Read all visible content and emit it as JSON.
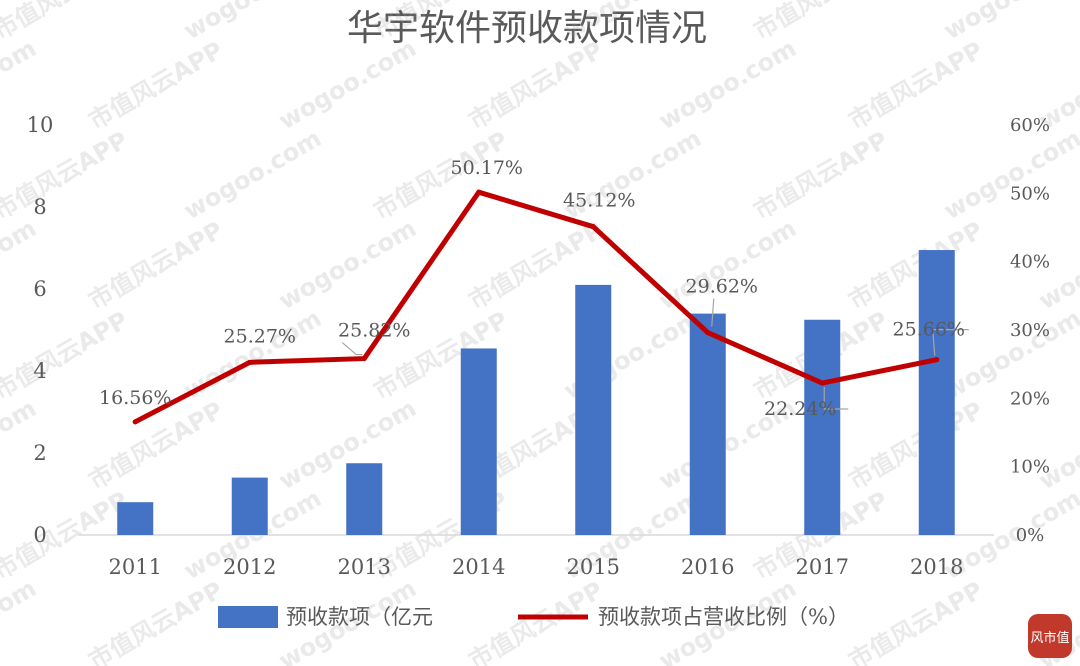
{
  "chart_data": {
    "type": "bar+line",
    "title": "华宇软件预收款项情况",
    "categories": [
      "2011",
      "2012",
      "2013",
      "2014",
      "2015",
      "2016",
      "2017",
      "2018"
    ],
    "series": [
      {
        "name": "预收款项（亿元",
        "type": "bar",
        "axis": "left",
        "color": "#4472C4",
        "values": [
          0.8,
          1.4,
          1.75,
          4.55,
          6.1,
          5.4,
          5.25,
          6.95
        ]
      },
      {
        "name": "预收款项占营收比例（%）",
        "type": "line",
        "axis": "right",
        "color": "#C00000",
        "values": [
          16.56,
          25.27,
          25.82,
          50.17,
          45.12,
          29.62,
          22.24,
          25.66
        ],
        "labels": [
          "16.56%",
          "25.27%",
          "25.82%",
          "50.17%",
          "45.12%",
          "29.62%",
          "22.24%",
          "25.66%"
        ]
      }
    ],
    "y_left": {
      "min": 0,
      "max": 10,
      "ticks": [
        "0",
        "2",
        "4",
        "6",
        "8",
        "10"
      ]
    },
    "y_right": {
      "min": 0,
      "max": 60,
      "ticks": [
        "0%",
        "10%",
        "20%",
        "30%",
        "40%",
        "50%",
        "60%"
      ]
    },
    "grid": false,
    "legend": "bottom"
  },
  "watermark": {
    "text_a": "wogoo.com",
    "text_b": "市值风云APP"
  },
  "logo": {
    "text": "风市值"
  }
}
